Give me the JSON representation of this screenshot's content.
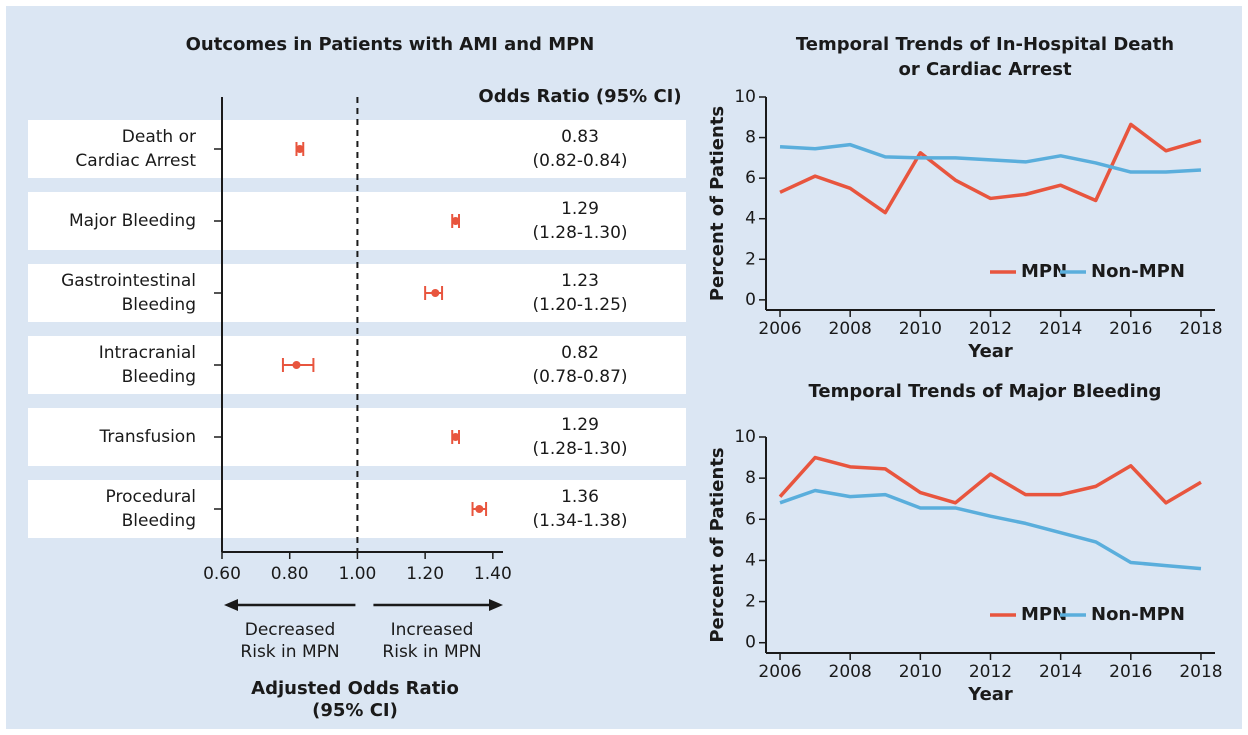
{
  "chart_data": [
    {
      "type": "forest",
      "title": "Outcomes in Patients with AMI and MPN",
      "column_header": "Odds Ratio (95% CI)",
      "categories": [
        [
          "Death or",
          "Cardiac Arrest"
        ],
        [
          "Major Bleeding"
        ],
        [
          "Gastrointestinal",
          "Bleeding"
        ],
        [
          "Intracranial",
          "Bleeding"
        ],
        [
          "Transfusion"
        ],
        [
          "Procedural",
          "Bleeding"
        ]
      ],
      "values": [
        0.83,
        1.29,
        1.23,
        0.82,
        1.29,
        1.36
      ],
      "lower": [
        0.82,
        1.28,
        1.2,
        0.78,
        1.28,
        1.34
      ],
      "upper": [
        0.84,
        1.3,
        1.25,
        0.87,
        1.3,
        1.38
      ],
      "ci_labels": [
        "(0.82-0.84)",
        "(1.28-1.30)",
        "(1.20-1.25)",
        "(0.78-0.87)",
        "(1.28-1.30)",
        "(1.34-1.38)"
      ],
      "color": "#e8553e",
      "xlim": [
        0.6,
        1.43
      ],
      "xticks": [
        {
          "value": 0.6,
          "label": "0.60"
        },
        {
          "value": 0.8,
          "label": "0.80"
        },
        {
          "value": 1.0,
          "label": "1.00"
        },
        {
          "value": 1.2,
          "label": "1.20"
        },
        {
          "value": 1.4,
          "label": "1.40"
        }
      ],
      "reference": 1,
      "left_arrow_label": [
        "Decreased",
        "Risk in MPN"
      ],
      "right_arrow_label": [
        "Increased",
        "Risk in MPN"
      ],
      "x_label": [
        "Adjusted Odds Ratio",
        "(95% CI)"
      ]
    },
    {
      "type": "line",
      "title": [
        "Temporal Trends of In-Hospital Death",
        "or Cardiac Arrest"
      ],
      "x_label": "Year",
      "y_label": "Percent of Patients",
      "x": [
        2006,
        2007,
        2008,
        2009,
        2010,
        2011,
        2012,
        2013,
        2014,
        2015,
        2016,
        2017,
        2018
      ],
      "series": [
        {
          "name": "MPN",
          "color": "#e8553e",
          "values": [
            5.3,
            6.1,
            5.5,
            4.3,
            7.25,
            5.9,
            5.0,
            5.2,
            5.65,
            4.9,
            8.65,
            7.35,
            7.85
          ]
        },
        {
          "name": "Non-MPN",
          "color": "#5aaedc",
          "values": [
            7.55,
            7.45,
            7.65,
            7.05,
            7.0,
            7.0,
            6.9,
            6.8,
            7.1,
            6.75,
            6.3,
            6.3,
            6.4
          ]
        }
      ],
      "xlim": [
        2005.6,
        2018.4
      ],
      "xticks": [
        2006,
        2008,
        2010,
        2012,
        2014,
        2016,
        2018
      ],
      "ylim": [
        -0.5,
        10
      ],
      "yticks": [
        0,
        2,
        4,
        6,
        8,
        10
      ],
      "legend": "lower right"
    },
    {
      "type": "line",
      "title": [
        "Temporal Trends of Major Bleeding"
      ],
      "x_label": "Year",
      "y_label": "Percent of Patients",
      "x": [
        2006,
        2007,
        2008,
        2009,
        2010,
        2011,
        2012,
        2013,
        2014,
        2015,
        2016,
        2017,
        2018
      ],
      "series": [
        {
          "name": "MPN",
          "color": "#e8553e",
          "values": [
            7.1,
            9.0,
            8.55,
            8.45,
            7.3,
            6.8,
            8.2,
            7.2,
            7.2,
            7.6,
            8.6,
            6.8,
            7.8
          ]
        },
        {
          "name": "Non-MPN",
          "color": "#5aaedc",
          "values": [
            6.8,
            7.4,
            7.1,
            7.2,
            6.55,
            6.55,
            6.15,
            5.8,
            5.35,
            4.9,
            3.9,
            3.75,
            3.6
          ]
        }
      ],
      "xlim": [
        2005.6,
        2018.4
      ],
      "xticks": [
        2006,
        2008,
        2010,
        2012,
        2014,
        2016,
        2018
      ],
      "ylim": [
        -0.5,
        10
      ],
      "yticks": [
        0,
        2,
        4,
        6,
        8,
        10
      ],
      "legend": "lower right"
    }
  ]
}
